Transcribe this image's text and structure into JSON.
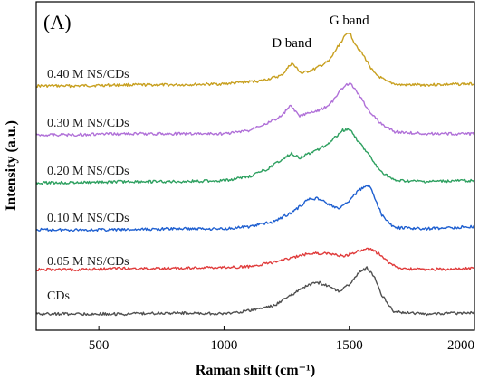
{
  "chart_data": {
    "type": "line",
    "panel_label": "(A)",
    "xlabel": "Raman shift (cm⁻¹)",
    "ylabel": "Intensity (a.u.)",
    "xlim": [
      250,
      2000
    ],
    "xticks": [
      500,
      1000,
      1500,
      2000
    ],
    "yticks": "none",
    "grid": false,
    "legend": "inline labels above each trace",
    "annotations": [
      {
        "text": "D band",
        "x": 1270
      },
      {
        "text": "G band",
        "x": 1500
      }
    ],
    "series": [
      {
        "name": "0.40 M NS/CDs",
        "color": "#C8A020",
        "x": [
          250,
          400,
          600,
          800,
          1000,
          1150,
          1230,
          1270,
          1310,
          1360,
          1420,
          1460,
          1490,
          1500,
          1520,
          1560,
          1600,
          1650,
          1700,
          1800,
          2000
        ],
        "y": [
          0.0,
          0.0,
          0.01,
          0.01,
          0.02,
          0.05,
          0.1,
          0.22,
          0.12,
          0.16,
          0.24,
          0.4,
          0.5,
          0.52,
          0.42,
          0.28,
          0.12,
          0.04,
          0.01,
          0.01,
          0.02
        ]
      },
      {
        "name": "0.30 M NS/CDs",
        "color": "#B070D8",
        "x": [
          250,
          400,
          600,
          800,
          1000,
          1100,
          1130,
          1180,
          1230,
          1265,
          1300,
          1360,
          1420,
          1470,
          1500,
          1530,
          1570,
          1620,
          1680,
          1800,
          2000
        ],
        "y": [
          0.0,
          0.0,
          0.01,
          0.01,
          0.01,
          0.04,
          0.08,
          0.12,
          0.18,
          0.28,
          0.18,
          0.22,
          0.28,
          0.44,
          0.5,
          0.42,
          0.26,
          0.12,
          0.03,
          0.01,
          0.01
        ]
      },
      {
        "name": "0.20 M NS/CDs",
        "color": "#2EA060",
        "x": [
          250,
          400,
          600,
          800,
          1000,
          1100,
          1180,
          1240,
          1270,
          1300,
          1360,
          1420,
          1470,
          1500,
          1530,
          1580,
          1620,
          1680,
          1800,
          2000
        ],
        "y": [
          0.0,
          0.0,
          0.01,
          0.01,
          0.02,
          0.06,
          0.14,
          0.24,
          0.28,
          0.24,
          0.3,
          0.38,
          0.5,
          0.52,
          0.42,
          0.26,
          0.12,
          0.02,
          0.01,
          0.02
        ]
      },
      {
        "name": "0.10 M NS/CDs",
        "color": "#1E5FD0",
        "x": [
          250,
          400,
          600,
          800,
          1000,
          1100,
          1200,
          1280,
          1340,
          1380,
          1420,
          1460,
          1500,
          1530,
          1560,
          1580,
          1600,
          1630,
          1680,
          1800,
          2000
        ],
        "y": [
          0.0,
          0.0,
          0.0,
          0.01,
          0.01,
          0.03,
          0.08,
          0.18,
          0.3,
          0.3,
          0.24,
          0.2,
          0.28,
          0.36,
          0.42,
          0.42,
          0.32,
          0.14,
          0.02,
          0.01,
          0.03
        ]
      },
      {
        "name": "0.05 M NS/CDs",
        "color": "#E03C3C",
        "x": [
          250,
          400,
          600,
          800,
          1000,
          1100,
          1200,
          1280,
          1350,
          1420,
          1480,
          1540,
          1580,
          1620,
          1660,
          1700,
          1800,
          2000
        ],
        "y": [
          0.0,
          0.0,
          0.01,
          0.01,
          0.02,
          0.03,
          0.07,
          0.12,
          0.16,
          0.15,
          0.13,
          0.18,
          0.2,
          0.15,
          0.06,
          0.01,
          0.0,
          0.01
        ]
      },
      {
        "name": "CDs",
        "color": "#505050",
        "x": [
          250,
          400,
          600,
          800,
          1000,
          1100,
          1200,
          1280,
          1340,
          1380,
          1420,
          1460,
          1500,
          1540,
          1570,
          1600,
          1630,
          1680,
          1800,
          2000
        ],
        "y": [
          0.0,
          0.0,
          0.0,
          0.01,
          0.0,
          0.03,
          0.08,
          0.2,
          0.28,
          0.3,
          0.26,
          0.22,
          0.28,
          0.4,
          0.44,
          0.36,
          0.18,
          0.02,
          0.0,
          0.01
        ]
      }
    ]
  }
}
